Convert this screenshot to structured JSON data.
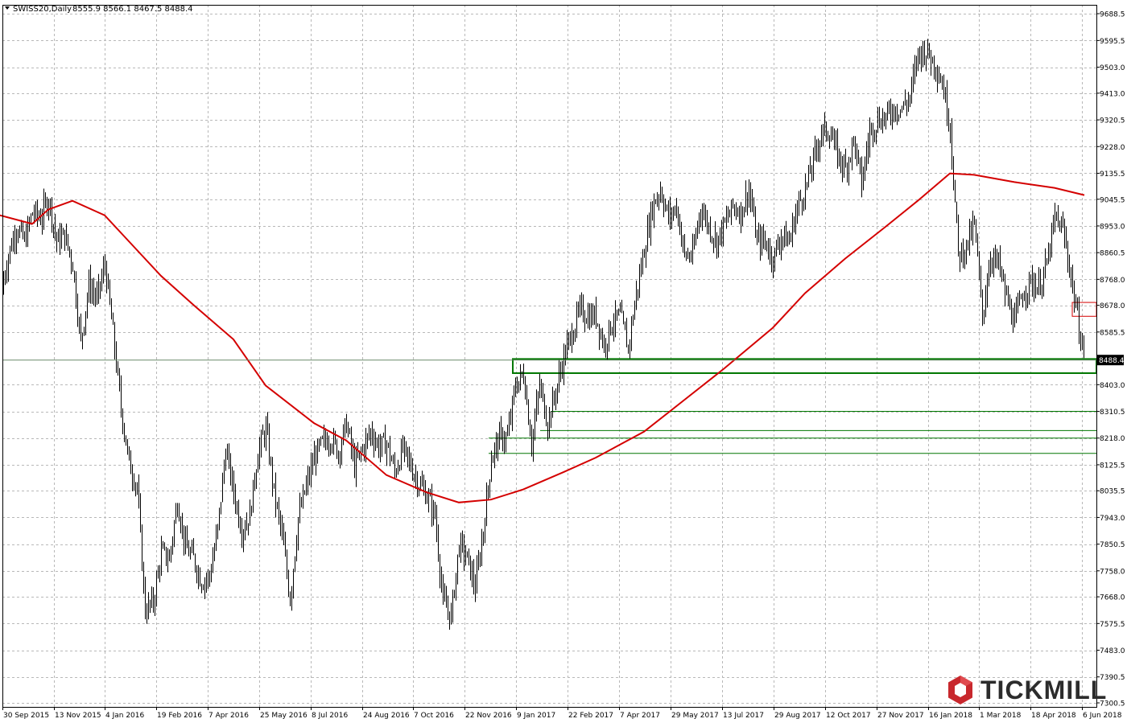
{
  "header": {
    "symbol": "SWISS20,Daily",
    "ohlc": "8555.9 8566.1 8467.5 8488.4"
  },
  "brand": {
    "name": "TICKMILL",
    "color": "#c8282d"
  },
  "chart_data": {
    "type": "bar",
    "subtype": "ohlc-price-chart",
    "symbol": "SWISS20",
    "timeframe": "Daily",
    "grid": true,
    "current_price": 8488.4,
    "last_bar": {
      "open": 8555.9,
      "high": 8566.1,
      "low": 8467.5,
      "close": 8488.4
    },
    "ylim": [
      7300.5,
      9688.5
    ],
    "y_ticks": [
      "9688.5",
      "9595.5",
      "9503.0",
      "9413.0",
      "9320.5",
      "9228.0",
      "9135.5",
      "9045.5",
      "8953.0",
      "8860.5",
      "8768.0",
      "8678.0",
      "8585.5",
      "8403.0",
      "8310.5",
      "8218.0",
      "8125.5",
      "8035.5",
      "7943.0",
      "7850.5",
      "7758.0",
      "7668.0",
      "7575.5",
      "7483.0",
      "7390.5",
      "7300.5"
    ],
    "x_ticks": [
      "30 Sep 2015",
      "13 Nov 2015",
      "4 Jan 2016",
      "19 Feb 2016",
      "7 Apr 2016",
      "25 May 2016",
      "8 Jul 2016",
      "24 Aug 2016",
      "7 Oct 2016",
      "22 Nov 2016",
      "9 Jan 2017",
      "22 Feb 2017",
      "7 Apr 2017",
      "29 May 2017",
      "13 Jul 2017",
      "29 Aug 2017",
      "12 Oct 2017",
      "27 Nov 2017",
      "16 Jan 2018",
      "1 Mar 2018",
      "18 Apr 2018",
      "6 Jun 2018"
    ],
    "price_path": [
      [
        0,
        8720
      ],
      [
        10,
        8850
      ],
      [
        20,
        8950
      ],
      [
        30,
        8900
      ],
      [
        40,
        9000
      ],
      [
        50,
        8980
      ],
      [
        60,
        9050
      ],
      [
        70,
        8900
      ],
      [
        80,
        8920
      ],
      [
        90,
        8820
      ],
      [
        100,
        8550
      ],
      [
        110,
        8750
      ],
      [
        120,
        8700
      ],
      [
        130,
        8820
      ],
      [
        140,
        8580
      ],
      [
        150,
        8320
      ],
      [
        160,
        8130
      ],
      [
        170,
        8050
      ],
      [
        180,
        7620
      ],
      [
        190,
        7650
      ],
      [
        200,
        7820
      ],
      [
        210,
        7800
      ],
      [
        220,
        8000
      ],
      [
        230,
        7840
      ],
      [
        240,
        7800
      ],
      [
        250,
        7720
      ],
      [
        260,
        7740
      ],
      [
        270,
        7900
      ],
      [
        280,
        8180
      ],
      [
        290,
        8030
      ],
      [
        300,
        7900
      ],
      [
        310,
        7950
      ],
      [
        320,
        8170
      ],
      [
        330,
        8250
      ],
      [
        340,
        8030
      ],
      [
        350,
        7880
      ],
      [
        360,
        7660
      ],
      [
        370,
        7940
      ],
      [
        380,
        8050
      ],
      [
        390,
        8150
      ],
      [
        400,
        8200
      ],
      [
        410,
        8220
      ],
      [
        420,
        8170
      ],
      [
        430,
        8270
      ],
      [
        440,
        8120
      ],
      [
        450,
        8180
      ],
      [
        460,
        8240
      ],
      [
        470,
        8190
      ],
      [
        480,
        8200
      ],
      [
        490,
        8100
      ],
      [
        500,
        8180
      ],
      [
        510,
        8120
      ],
      [
        520,
        8060
      ],
      [
        530,
        8020
      ],
      [
        540,
        7950
      ],
      [
        550,
        7650
      ],
      [
        560,
        7600
      ],
      [
        570,
        7850
      ],
      [
        580,
        7800
      ],
      [
        590,
        7700
      ],
      [
        600,
        7900
      ],
      [
        610,
        8150
      ],
      [
        620,
        8220
      ],
      [
        630,
        8220
      ],
      [
        640,
        8400
      ],
      [
        650,
        8440
      ],
      [
        660,
        8200
      ],
      [
        670,
        8400
      ],
      [
        680,
        8270
      ],
      [
        690,
        8380
      ],
      [
        700,
        8500
      ],
      [
        710,
        8580
      ],
      [
        720,
        8660
      ],
      [
        730,
        8640
      ],
      [
        740,
        8640
      ],
      [
        750,
        8540
      ],
      [
        760,
        8620
      ],
      [
        770,
        8640
      ],
      [
        780,
        8530
      ],
      [
        790,
        8720
      ],
      [
        800,
        8870
      ],
      [
        810,
        9020
      ],
      [
        820,
        9080
      ],
      [
        830,
        8980
      ],
      [
        840,
        9020
      ],
      [
        850,
        8850
      ],
      [
        860,
        8850
      ],
      [
        870,
        9020
      ],
      [
        880,
        8950
      ],
      [
        890,
        8900
      ],
      [
        900,
        8960
      ],
      [
        910,
        9020
      ],
      [
        920,
        9000
      ],
      [
        930,
        9080
      ],
      [
        940,
        8900
      ],
      [
        950,
        8900
      ],
      [
        960,
        8840
      ],
      [
        970,
        8920
      ],
      [
        980,
        8900
      ],
      [
        990,
        9020
      ],
      [
        1000,
        9080
      ],
      [
        1010,
        9180
      ],
      [
        1020,
        9280
      ],
      [
        1030,
        9280
      ],
      [
        1040,
        9200
      ],
      [
        1050,
        9150
      ],
      [
        1060,
        9250
      ],
      [
        1070,
        9100
      ],
      [
        1080,
        9280
      ],
      [
        1090,
        9320
      ],
      [
        1100,
        9330
      ],
      [
        1110,
        9360
      ],
      [
        1120,
        9360
      ],
      [
        1130,
        9400
      ],
      [
        1140,
        9550
      ],
      [
        1150,
        9560
      ],
      [
        1160,
        9520
      ],
      [
        1170,
        9450
      ],
      [
        1180,
        9300
      ],
      [
        1190,
        8850
      ],
      [
        1200,
        8880
      ],
      [
        1210,
        8960
      ],
      [
        1220,
        8640
      ],
      [
        1230,
        8850
      ],
      [
        1240,
        8820
      ],
      [
        1250,
        8700
      ],
      [
        1260,
        8620
      ],
      [
        1270,
        8720
      ],
      [
        1280,
        8760
      ],
      [
        1290,
        8740
      ],
      [
        1300,
        8820
      ],
      [
        1310,
        8980
      ],
      [
        1320,
        8940
      ],
      [
        1330,
        8780
      ],
      [
        1340,
        8600
      ],
      [
        1347,
        8490
      ]
    ],
    "ma_path": [
      [
        0,
        8990
      ],
      [
        40,
        8960
      ],
      [
        60,
        9010
      ],
      [
        90,
        9040
      ],
      [
        130,
        8990
      ],
      [
        160,
        8900
      ],
      [
        200,
        8780
      ],
      [
        240,
        8680
      ],
      [
        290,
        8560
      ],
      [
        330,
        8400
      ],
      [
        390,
        8270
      ],
      [
        430,
        8210
      ],
      [
        480,
        8090
      ],
      [
        530,
        8030
      ],
      [
        570,
        7995
      ],
      [
        610,
        8005
      ],
      [
        650,
        8040
      ],
      [
        700,
        8100
      ],
      [
        740,
        8150
      ],
      [
        800,
        8240
      ],
      [
        850,
        8350
      ],
      [
        900,
        8460
      ],
      [
        960,
        8600
      ],
      [
        1000,
        8720
      ],
      [
        1050,
        8840
      ],
      [
        1100,
        8950
      ],
      [
        1140,
        9040
      ],
      [
        1180,
        9135
      ],
      [
        1210,
        9130
      ],
      [
        1260,
        9105
      ],
      [
        1310,
        9085
      ],
      [
        1347,
        9060
      ]
    ],
    "zone_primary": {
      "x_start": "9 Jan 2017",
      "low": 8443,
      "high": 8492
    },
    "zone_red": {
      "x_start": "6 Jun 2018",
      "low": 8640,
      "high": 8688
    },
    "support_lines": [
      {
        "x_start": "22 Feb 2017",
        "level": 8310.5
      },
      {
        "x_start": "9 Jan 2017",
        "level": 8244
      },
      {
        "x_start": "22 Nov 2016",
        "level": 8218
      },
      {
        "x_start": "22 Nov 2016",
        "level": 8165
      }
    ],
    "colors": {
      "ma": "#d40000",
      "zone": "#007700",
      "grid": "#b8b8b8",
      "bars": "#000000",
      "price_box": "#000000"
    }
  }
}
